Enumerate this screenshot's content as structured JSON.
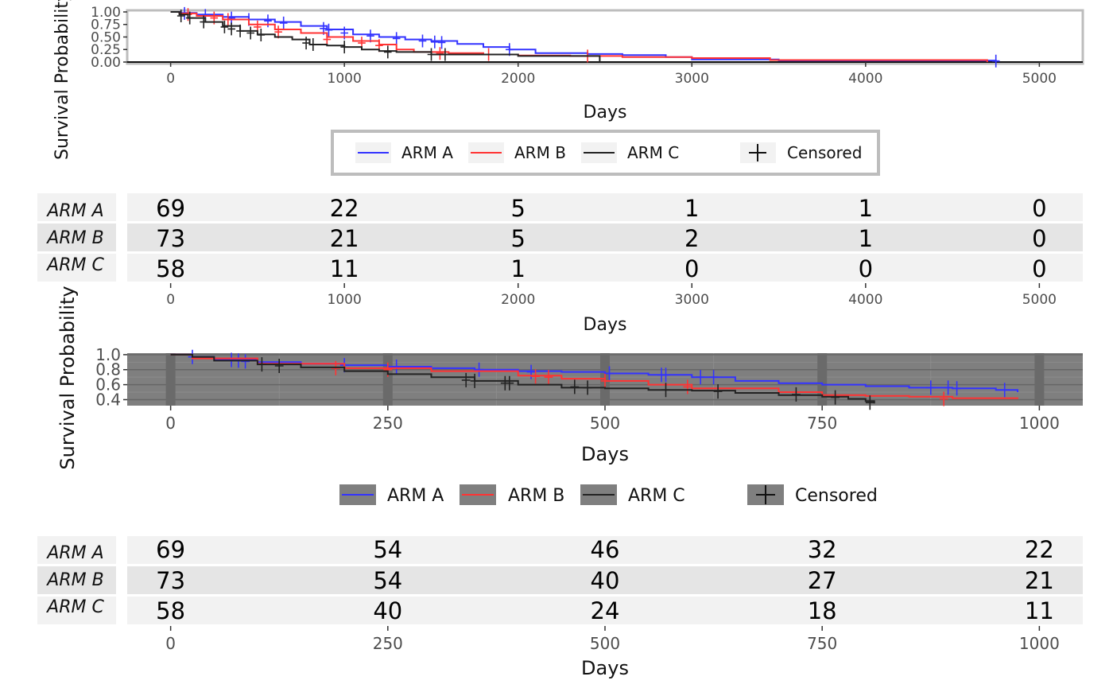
{
  "chart_data": [
    {
      "type": "line",
      "subtype": "kaplan-meier",
      "title": "",
      "xlabel": "Days",
      "ylabel": "Survival Probability",
      "xlim": [
        -250,
        5250
      ],
      "ylim": [
        0,
        1
      ],
      "xticks": [
        0,
        1000,
        2000,
        3000,
        4000,
        5000
      ],
      "yticks": [
        "0.00",
        "0.25",
        "0.50",
        "0.75",
        "1.00"
      ],
      "grid": false,
      "legend_position": "bottom",
      "legend": {
        "entries": [
          "ARM A",
          "ARM B",
          "ARM C"
        ],
        "censored_label": "Censored"
      },
      "series": [
        {
          "name": "ARM A",
          "color": "#3333ff",
          "x": [
            0,
            60,
            150,
            300,
            450,
            600,
            750,
            900,
            1050,
            1200,
            1350,
            1500,
            1650,
            1800,
            1950,
            2100,
            2400,
            2600,
            2850,
            3000,
            3500,
            4000,
            4700,
            4750
          ],
          "y": [
            1.0,
            0.98,
            0.95,
            0.9,
            0.85,
            0.8,
            0.72,
            0.65,
            0.55,
            0.5,
            0.45,
            0.42,
            0.36,
            0.3,
            0.25,
            0.18,
            0.16,
            0.14,
            0.1,
            0.05,
            0.03,
            0.03,
            0.03,
            0.0
          ],
          "censored_x": [
            80,
            200,
            350,
            450,
            560,
            650,
            880,
            910,
            1000,
            1150,
            1300,
            1450,
            1520,
            1560,
            1950,
            4750
          ],
          "censored_y": [
            0.97,
            0.93,
            0.88,
            0.85,
            0.82,
            0.78,
            0.67,
            0.64,
            0.58,
            0.52,
            0.47,
            0.42,
            0.4,
            0.39,
            0.25,
            0.02
          ]
        },
        {
          "name": "ARM B",
          "color": "#ff3333",
          "x": [
            0,
            50,
            150,
            300,
            450,
            600,
            750,
            900,
            1050,
            1200,
            1300,
            1400,
            1600,
            1800,
            2000,
            2300,
            2600,
            3000,
            3400,
            3450,
            4700
          ],
          "y": [
            1.0,
            0.97,
            0.92,
            0.85,
            0.75,
            0.65,
            0.58,
            0.5,
            0.42,
            0.35,
            0.25,
            0.2,
            0.18,
            0.15,
            0.13,
            0.12,
            0.1,
            0.08,
            0.08,
            0.04,
            0.0
          ],
          "censored_x": [
            100,
            250,
            330,
            500,
            620,
            900,
            1100,
            1200,
            1550,
            1830,
            2400
          ],
          "censored_y": [
            0.95,
            0.88,
            0.85,
            0.7,
            0.6,
            0.45,
            0.38,
            0.33,
            0.17,
            0.15,
            0.12
          ]
        },
        {
          "name": "ARM C",
          "color": "#222222",
          "x": [
            0,
            50,
            100,
            200,
            300,
            400,
            500,
            600,
            700,
            800,
            900,
            1000,
            1100,
            1200,
            1300,
            1500,
            1700,
            2000,
            2200,
            2450,
            2470
          ],
          "y": [
            1.0,
            0.95,
            0.88,
            0.8,
            0.72,
            0.62,
            0.55,
            0.5,
            0.45,
            0.35,
            0.33,
            0.3,
            0.25,
            0.22,
            0.2,
            0.15,
            0.15,
            0.12,
            0.12,
            0.12,
            0.0
          ],
          "censored_x": [
            60,
            110,
            190,
            310,
            350,
            400,
            460,
            520,
            780,
            820,
            1000,
            1250,
            1500,
            1580
          ],
          "censored_y": [
            0.92,
            0.88,
            0.8,
            0.7,
            0.66,
            0.62,
            0.58,
            0.54,
            0.38,
            0.35,
            0.3,
            0.2,
            0.15,
            0.15
          ]
        }
      ]
    },
    {
      "type": "table",
      "subtype": "risk-table",
      "xlabel": "Days",
      "xlim": [
        -250,
        5250
      ],
      "xticks": [
        0,
        1000,
        2000,
        3000,
        4000,
        5000
      ],
      "rows": [
        {
          "name": "ARM A",
          "values": [
            "69",
            "22",
            "5",
            "1",
            "1",
            "0"
          ]
        },
        {
          "name": "ARM B",
          "values": [
            "73",
            "21",
            "5",
            "2",
            "1",
            "0"
          ]
        },
        {
          "name": "ARM C",
          "values": [
            "58",
            "11",
            "1",
            "0",
            "0",
            "0"
          ]
        }
      ]
    },
    {
      "type": "line",
      "subtype": "kaplan-meier",
      "title": "",
      "xlabel": "Days",
      "ylabel": "Survival Probability",
      "xlim": [
        -50,
        1050
      ],
      "ylim": [
        0.32,
        1.02
      ],
      "xticks": [
        0,
        250,
        500,
        750,
        1000
      ],
      "yticks": [
        "0.4",
        "0.6",
        "0.8",
        "1.0"
      ],
      "grid": true,
      "legend_position": "bottom",
      "legend": {
        "entries": [
          "ARM A",
          "ARM B",
          "ARM C"
        ],
        "censored_label": "Censored"
      },
      "series": [
        {
          "name": "ARM A",
          "color": "#3333ff",
          "x": [
            0,
            25,
            50,
            100,
            150,
            200,
            250,
            300,
            350,
            400,
            450,
            500,
            550,
            600,
            650,
            700,
            750,
            800,
            850,
            900,
            950,
            975
          ],
          "y": [
            1.0,
            0.97,
            0.94,
            0.9,
            0.88,
            0.86,
            0.84,
            0.82,
            0.8,
            0.78,
            0.77,
            0.75,
            0.73,
            0.7,
            0.65,
            0.62,
            0.6,
            0.58,
            0.56,
            0.55,
            0.53,
            0.5
          ],
          "censored_x": [
            25,
            70,
            78,
            86,
            200,
            260,
            355,
            415,
            505,
            565,
            570,
            610,
            625,
            875,
            895,
            905,
            960
          ],
          "censored_y": [
            0.97,
            0.93,
            0.92,
            0.91,
            0.86,
            0.84,
            0.8,
            0.77,
            0.75,
            0.73,
            0.73,
            0.7,
            0.7,
            0.56,
            0.56,
            0.55,
            0.53
          ]
        },
        {
          "name": "ARM B",
          "color": "#ff3333",
          "x": [
            0,
            25,
            100,
            200,
            300,
            400,
            450,
            500,
            550,
            600,
            700,
            750,
            800,
            850,
            900,
            975
          ],
          "y": [
            1.0,
            0.95,
            0.88,
            0.82,
            0.78,
            0.72,
            0.68,
            0.65,
            0.6,
            0.55,
            0.5,
            0.46,
            0.45,
            0.44,
            0.42,
            0.41
          ],
          "censored_x": [
            190,
            250,
            420,
            435,
            500,
            595,
            890
          ],
          "censored_y": [
            0.82,
            0.8,
            0.71,
            0.7,
            0.65,
            0.57,
            0.41
          ]
        },
        {
          "name": "ARM C",
          "color": "#222222",
          "x": [
            0,
            25,
            50,
            100,
            150,
            200,
            250,
            300,
            350,
            400,
            450,
            500,
            550,
            600,
            650,
            700,
            750,
            780,
            800,
            810
          ],
          "y": [
            1.0,
            0.97,
            0.92,
            0.87,
            0.83,
            0.78,
            0.74,
            0.7,
            0.65,
            0.6,
            0.56,
            0.55,
            0.53,
            0.52,
            0.49,
            0.46,
            0.44,
            0.41,
            0.38,
            0.35
          ],
          "censored_x": [
            105,
            125,
            340,
            350,
            385,
            390,
            465,
            480,
            570,
            630,
            720,
            765,
            805
          ],
          "censored_y": [
            0.87,
            0.85,
            0.66,
            0.65,
            0.62,
            0.62,
            0.57,
            0.56,
            0.53,
            0.51,
            0.47,
            0.43,
            0.36
          ]
        }
      ]
    },
    {
      "type": "table",
      "subtype": "risk-table",
      "xlabel": "Days",
      "xlim": [
        -50,
        1050
      ],
      "xticks": [
        0,
        250,
        500,
        750,
        1000
      ],
      "rows": [
        {
          "name": "ARM A",
          "values": [
            "69",
            "54",
            "46",
            "32",
            "22"
          ]
        },
        {
          "name": "ARM B",
          "values": [
            "73",
            "54",
            "40",
            "27",
            "21"
          ]
        },
        {
          "name": "ARM C",
          "values": [
            "58",
            "40",
            "24",
            "18",
            "11"
          ]
        }
      ]
    }
  ]
}
